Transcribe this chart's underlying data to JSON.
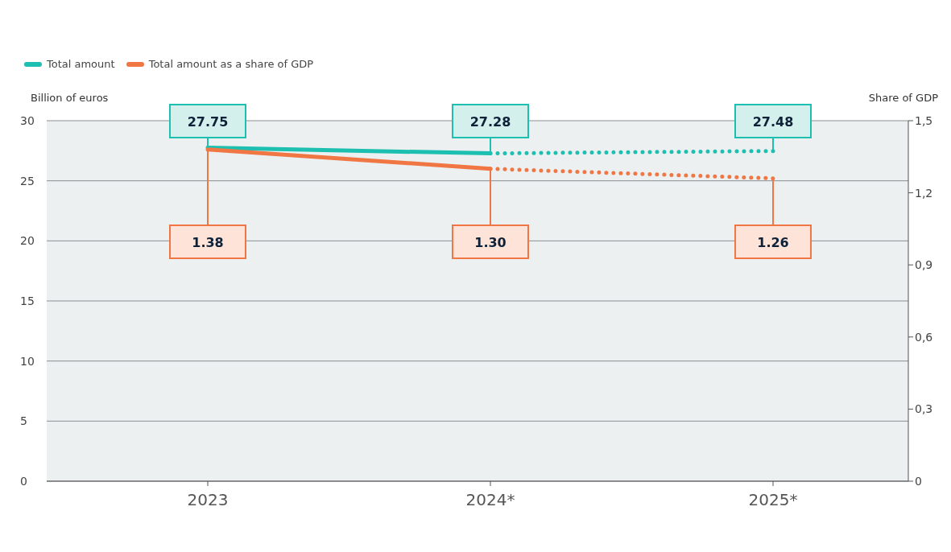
{
  "chart_data": {
    "type": "line",
    "categories": [
      "2023",
      "2024*",
      "2025*"
    ],
    "ylabel": "Billion of euros",
    "y2label": "Share of GDP",
    "series": [
      {
        "name": "Total amount",
        "color": "#1dbfb0",
        "values": [
          27.75,
          27.28,
          null
        ],
        "line_style": "solid",
        "value_labels": [
          "27.75",
          "27.28",
          null
        ]
      },
      {
        "color": "#1dbfb0",
        "values": [
          null,
          27.28,
          27.48
        ],
        "line_style": "dotted",
        "value_labels": [
          null,
          null,
          "27.48"
        ]
      },
      {
        "name": "Total amount as a share of GDP",
        "color": "#f07643",
        "axis": "y2",
        "values": [
          1.38,
          1.3,
          null
        ],
        "line_style": "solid",
        "value_labels": [
          "1.38",
          "1.30",
          null
        ]
      },
      {
        "color": "#f07643",
        "axis": "y2",
        "values": [
          null,
          1.3,
          1.26
        ],
        "line_style": "dotted",
        "value_labels": [
          null,
          null,
          "1.26"
        ]
      }
    ],
    "ylim": [
      0,
      30
    ],
    "yticks": [
      0,
      5,
      10,
      15,
      20,
      25,
      30
    ],
    "y2lim": [
      0,
      1.5
    ],
    "y2ticks": [
      0,
      {
        "value": 0.3,
        "label": "0,3"
      },
      {
        "value": 0.6,
        "label": "0,6"
      },
      {
        "value": 0.9,
        "label": "0,9"
      },
      {
        "value": 1.2,
        "label": "1,2"
      },
      {
        "value": 1.5,
        "label": "1,5"
      }
    ],
    "grid": "y",
    "legend": "top left",
    "marker": "none"
  }
}
